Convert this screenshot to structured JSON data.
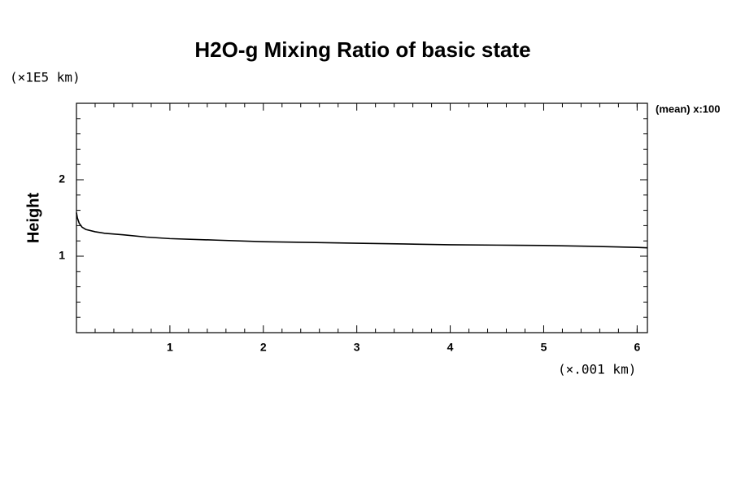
{
  "chart_data": {
    "type": "line",
    "title": "H2O-g Mixing Ratio of basic state",
    "y_unit_label": "(×1E5 km)",
    "ylabel": "Height",
    "x_unit_label": "(×.001 km)",
    "side_note": "(mean) x:100",
    "x": [
      0,
      0.01,
      0.03,
      0.06,
      0.1,
      0.2,
      0.3,
      0.5,
      0.75,
      1,
      1.5,
      2,
      2.5,
      3,
      3.5,
      4,
      4.5,
      5,
      5.5,
      6,
      6.11
    ],
    "series": [
      {
        "name": "H2O-g",
        "color": "#000000",
        "values": [
          1.57,
          1.5,
          1.43,
          1.38,
          1.35,
          1.32,
          1.3,
          1.28,
          1.25,
          1.23,
          1.21,
          1.19,
          1.18,
          1.17,
          1.16,
          1.15,
          1.145,
          1.14,
          1.13,
          1.115,
          1.11
        ]
      }
    ],
    "xlim": [
      0,
      6.11
    ],
    "ylim": [
      0,
      3
    ],
    "xticks": [
      1,
      2,
      3,
      4,
      5,
      6
    ],
    "yticks": [
      1,
      2
    ],
    "x_minor_ticks": [
      0.2,
      0.4,
      0.6,
      0.8,
      1.2,
      1.4,
      1.6,
      1.8,
      2.2,
      2.4,
      2.6,
      2.8,
      3.2,
      3.4,
      3.6,
      3.8,
      4.2,
      4.4,
      4.6,
      4.8,
      5.2,
      5.4,
      5.6,
      5.8,
      6.0
    ],
    "y_minor_ticks": [
      0.2,
      0.4,
      0.6,
      0.8,
      1.2,
      1.4,
      1.6,
      1.8,
      2.2,
      2.4,
      2.6,
      2.8
    ]
  }
}
